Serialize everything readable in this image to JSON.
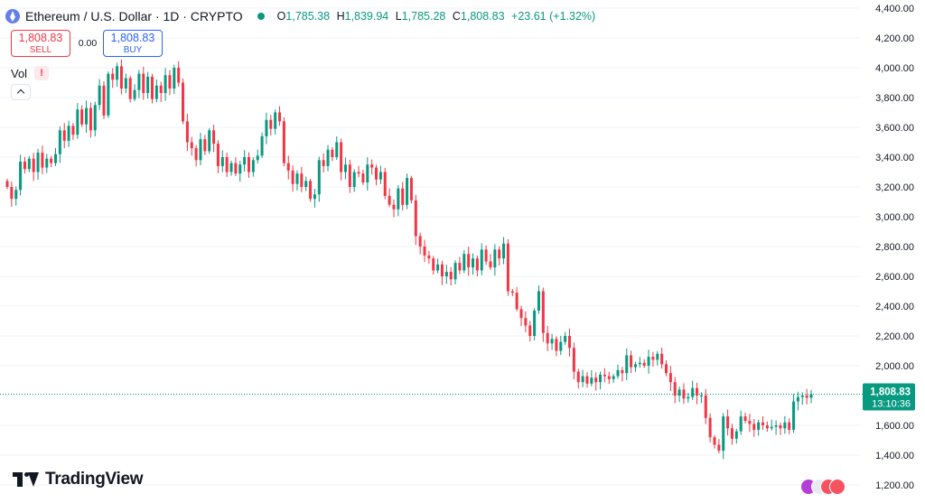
{
  "header": {
    "title": "Ethereum / U.S. Dollar · 1D · CRYPTO",
    "open_label": "O",
    "open": "1,785.38",
    "high_label": "H",
    "high": "1,839.94",
    "low_label": "L",
    "low": "1,785.28",
    "close_label": "C",
    "close": "1,808.83",
    "change": "+23.61 (+1.32%)"
  },
  "trade": {
    "sell_price": "1,808.83",
    "sell_label": "SELL",
    "spread": "0.00",
    "buy_price": "1,808.83",
    "buy_label": "BUY"
  },
  "volume": {
    "label": "Vol",
    "warning": "!"
  },
  "price_tag": {
    "price": "1,808.83",
    "countdown": "13:10:36"
  },
  "branding": {
    "logo_text": "TradingView"
  },
  "colors": {
    "up": "#089981",
    "down": "#f23645",
    "price_line": "#089981",
    "sell": "#f23645",
    "buy": "#2962ff",
    "axis_text": "#131722",
    "grid": "#f0f3fa"
  },
  "chart_data": {
    "type": "candlestick",
    "y_axis": {
      "position": "right",
      "range": [
        1200,
        4400
      ],
      "tick_labels": [
        "4,400.00",
        "4,200.00",
        "4,000.00",
        "3,800.00",
        "3,600.00",
        "3,400.00",
        "3,200.00",
        "3,000.00",
        "2,800.00",
        "2,600.00",
        "2,400.00",
        "2,200.00",
        "2,000.00",
        "1,800.00",
        "1,600.00",
        "1,400.00",
        "1,200.00"
      ],
      "ticks": [
        4400,
        4200,
        4000,
        3800,
        3600,
        3400,
        3200,
        3000,
        2800,
        2600,
        2400,
        2200,
        2000,
        1800,
        1600,
        1400,
        1200
      ]
    },
    "grid": true,
    "last_price": 1808.83,
    "closes": [
      3200,
      3120,
      3180,
      3370,
      3320,
      3390,
      3300,
      3430,
      3330,
      3390,
      3360,
      3420,
      3580,
      3510,
      3610,
      3550,
      3720,
      3620,
      3730,
      3580,
      3750,
      3880,
      3680,
      3960,
      3920,
      4010,
      3860,
      3930,
      3790,
      3850,
      3960,
      3830,
      3940,
      3790,
      3880,
      3830,
      3950,
      3860,
      4000,
      3900,
      3640,
      3500,
      3460,
      3380,
      3520,
      3440,
      3580,
      3490,
      3340,
      3400,
      3300,
      3360,
      3290,
      3350,
      3400,
      3300,
      3380,
      3410,
      3540,
      3650,
      3590,
      3700,
      3640,
      3360,
      3310,
      3220,
      3290,
      3200,
      3240,
      3120,
      3150,
      3380,
      3340,
      3450,
      3400,
      3500,
      3300,
      3350,
      3200,
      3300,
      3290,
      3230,
      3350,
      3330,
      3250,
      3300,
      3140,
      3080,
      3050,
      3190,
      3080,
      3260,
      3110,
      2870,
      2800,
      2740,
      2720,
      2640,
      2680,
      2600,
      2630,
      2580,
      2690,
      2640,
      2750,
      2660,
      2720,
      2640,
      2780,
      2700,
      2660,
      2780,
      2720,
      2820,
      2500,
      2490,
      2380,
      2320,
      2270,
      2200,
      2370,
      2500,
      2220,
      2150,
      2180,
      2100,
      2160,
      2200,
      2120,
      1960,
      1890,
      1930,
      1880,
      1920,
      1890,
      1940,
      1930,
      1910,
      1930,
      1970,
      1950,
      2070,
      1990,
      2010,
      2020,
      2000,
      2060,
      2040,
      2080,
      2010,
      1950,
      1890,
      1800,
      1840,
      1780,
      1790,
      1850,
      1800,
      1800,
      1650,
      1520,
      1470,
      1430,
      1660,
      1580,
      1510,
      1560,
      1660,
      1630,
      1610,
      1570,
      1620,
      1600,
      1580,
      1590,
      1600,
      1580,
      1620,
      1570,
      1760,
      1790,
      1800,
      1785,
      1808.83
    ]
  }
}
